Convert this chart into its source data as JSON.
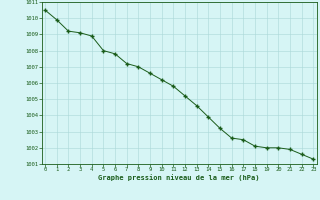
{
  "x": [
    0,
    1,
    2,
    3,
    4,
    5,
    6,
    7,
    8,
    9,
    10,
    11,
    12,
    13,
    14,
    15,
    16,
    17,
    18,
    19,
    20,
    21,
    22,
    23
  ],
  "y": [
    1010.5,
    1009.9,
    1009.2,
    1009.1,
    1008.9,
    1008.0,
    1007.8,
    1007.2,
    1007.0,
    1006.6,
    1006.2,
    1005.8,
    1005.2,
    1004.6,
    1003.9,
    1003.2,
    1002.6,
    1002.5,
    1002.1,
    1002.0,
    1002.0,
    1001.9,
    1001.6,
    1001.3
  ],
  "ylim": [
    1001,
    1011
  ],
  "xlim": [
    -0.3,
    23.3
  ],
  "yticks": [
    1001,
    1002,
    1003,
    1004,
    1005,
    1006,
    1007,
    1008,
    1009,
    1010,
    1011
  ],
  "xticks": [
    0,
    1,
    2,
    3,
    4,
    5,
    6,
    7,
    8,
    9,
    10,
    11,
    12,
    13,
    14,
    15,
    16,
    17,
    18,
    19,
    20,
    21,
    22,
    23
  ],
  "line_color": "#1a5c1a",
  "marker": "+",
  "marker_color": "#1a5c1a",
  "bg_color": "#d6f5f5",
  "grid_color": "#aad8d8",
  "tick_color": "#1a5c1a",
  "xlabel": "Graphe pression niveau de la mer (hPa)",
  "xlabel_color": "#1a5c1a",
  "fig_bg": "#d6f5f5",
  "spine_color": "#1a5c1a"
}
